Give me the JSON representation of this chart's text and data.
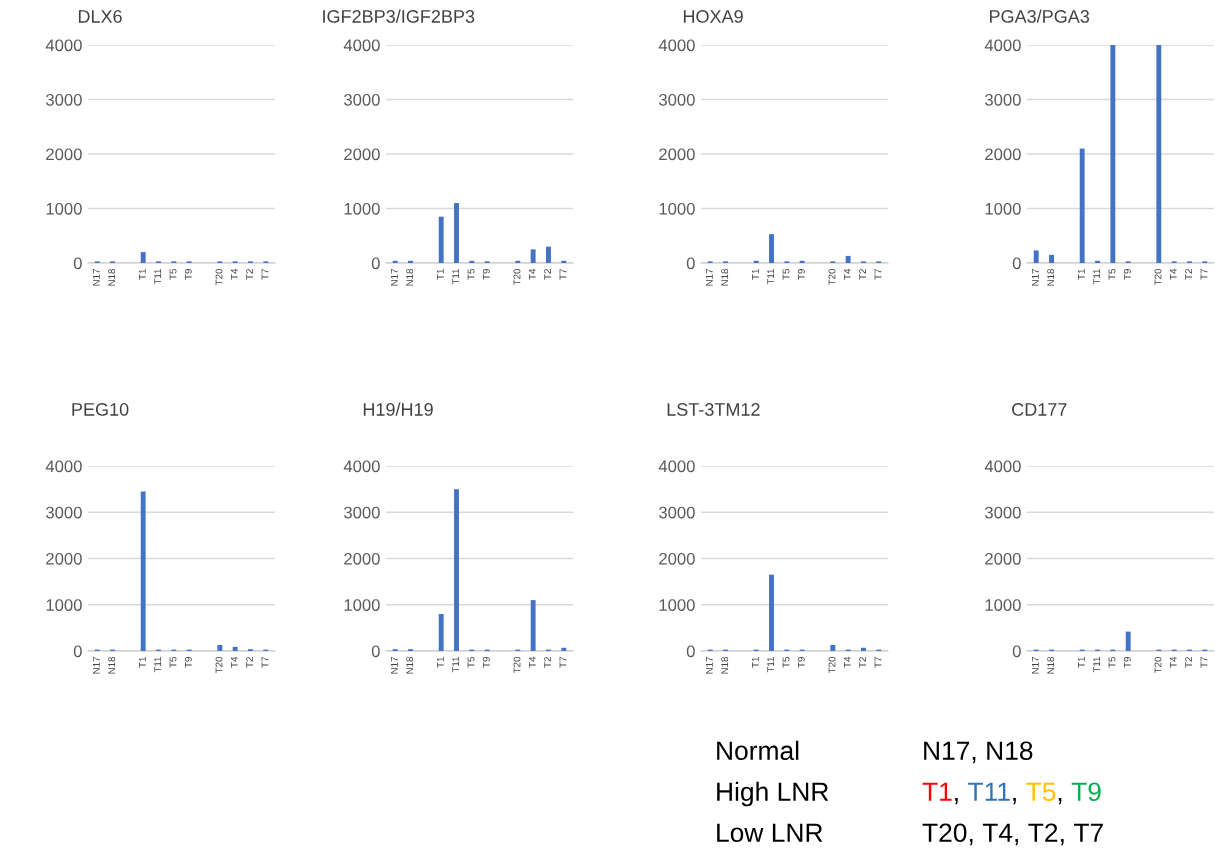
{
  "chart_data": [
    {
      "type": "bar",
      "title": "DLX6",
      "categories": [
        "N17",
        "N18",
        null,
        "T1",
        "T11",
        "T5",
        "T9",
        null,
        "T20",
        "T4",
        "T2",
        "T7"
      ],
      "values": [
        30,
        30,
        null,
        200,
        30,
        30,
        30,
        null,
        30,
        30,
        30,
        30
      ],
      "color": "#4472c4",
      "ylim": [
        0,
        4000
      ],
      "yticks": [
        0,
        1000,
        2000,
        3000,
        4000
      ],
      "grid": "y"
    },
    {
      "type": "bar",
      "title": "IGF2BP3/IGF2BP3",
      "categories": [
        "N17",
        "N18",
        null,
        "T1",
        "T11",
        "T5",
        "T9",
        null,
        "T20",
        "T4",
        "T2",
        "T7"
      ],
      "values": [
        40,
        40,
        null,
        850,
        1100,
        40,
        30,
        null,
        40,
        250,
        300,
        40
      ],
      "color": "#4472c4",
      "ylim": [
        0,
        4000
      ],
      "yticks": [
        0,
        1000,
        2000,
        3000,
        4000
      ],
      "grid": "y"
    },
    {
      "type": "bar",
      "title": "HOXA9",
      "categories": [
        "N17",
        "N18",
        null,
        "T1",
        "T11",
        "T5",
        "T9",
        null,
        "T20",
        "T4",
        "T2",
        "T7"
      ],
      "values": [
        30,
        30,
        null,
        40,
        530,
        30,
        40,
        null,
        30,
        130,
        30,
        30
      ],
      "color": "#4472c4",
      "ylim": [
        0,
        4000
      ],
      "yticks": [
        0,
        1000,
        2000,
        3000,
        4000
      ],
      "grid": "y"
    },
    {
      "type": "bar",
      "title": "PGA3/PGA3",
      "categories": [
        "N17",
        "N18",
        null,
        "T1",
        "T11",
        "T5",
        "T9",
        null,
        "T20",
        "T4",
        "T2",
        "T7"
      ],
      "values": [
        230,
        150,
        null,
        2100,
        40,
        4000,
        30,
        null,
        4000,
        30,
        30,
        30
      ],
      "color": "#4472c4",
      "ylim": [
        0,
        4000
      ],
      "yticks": [
        0,
        1000,
        2000,
        3000,
        4000
      ],
      "grid": "y"
    },
    {
      "type": "bar",
      "title": "PEG10",
      "categories": [
        "N17",
        "N18",
        null,
        "T1",
        "T11",
        "T5",
        "T9",
        null,
        "T20",
        "T4",
        "T2",
        "T7"
      ],
      "values": [
        30,
        30,
        null,
        3450,
        30,
        30,
        30,
        null,
        130,
        90,
        40,
        30
      ],
      "color": "#4472c4",
      "ylim": [
        0,
        4000
      ],
      "yticks": [
        0,
        1000,
        2000,
        3000,
        4000
      ],
      "grid": "y"
    },
    {
      "type": "bar",
      "title": "H19/H19",
      "categories": [
        "N17",
        "N18",
        null,
        "T1",
        "T11",
        "T5",
        "T9",
        null,
        "T20",
        "T4",
        "T2",
        "T7"
      ],
      "values": [
        40,
        40,
        null,
        800,
        3500,
        30,
        30,
        null,
        30,
        1100,
        30,
        70
      ],
      "color": "#4472c4",
      "ylim": [
        0,
        4000
      ],
      "yticks": [
        0,
        1000,
        2000,
        3000,
        4000
      ],
      "grid": "y"
    },
    {
      "type": "bar",
      "title": "LST-3TM12",
      "categories": [
        "N17",
        "N18",
        null,
        "T1",
        "T11",
        "T5",
        "T9",
        null,
        "T20",
        "T4",
        "T2",
        "T7"
      ],
      "values": [
        30,
        30,
        null,
        30,
        1650,
        30,
        30,
        null,
        130,
        30,
        70,
        30
      ],
      "color": "#4472c4",
      "ylim": [
        0,
        4000
      ],
      "yticks": [
        0,
        1000,
        2000,
        3000,
        4000
      ],
      "grid": "y"
    },
    {
      "type": "bar",
      "title": "CD177",
      "categories": [
        "N17",
        "N18",
        null,
        "T1",
        "T11",
        "T5",
        "T9",
        null,
        "T20",
        "T4",
        "T2",
        "T7"
      ],
      "values": [
        30,
        30,
        null,
        30,
        30,
        30,
        420,
        null,
        30,
        30,
        30,
        30
      ],
      "color": "#4472c4",
      "ylim": [
        0,
        4000
      ],
      "yticks": [
        0,
        1000,
        2000,
        3000,
        4000
      ],
      "grid": "y"
    },
    {
      "type": "other",
      "categories": [
        "Normal",
        "High LNR",
        "Low LNR"
      ],
      "annotations": [
        "N17, N18",
        "T1, T11, T5, T9",
        "T20, T4, T2, T7"
      ],
      "colors": [
        [
          "#000000"
        ],
        [
          "#ff0000",
          "#2e75b6",
          "#ffc000",
          "#00b050"
        ],
        [
          "#000000"
        ]
      ]
    }
  ]
}
